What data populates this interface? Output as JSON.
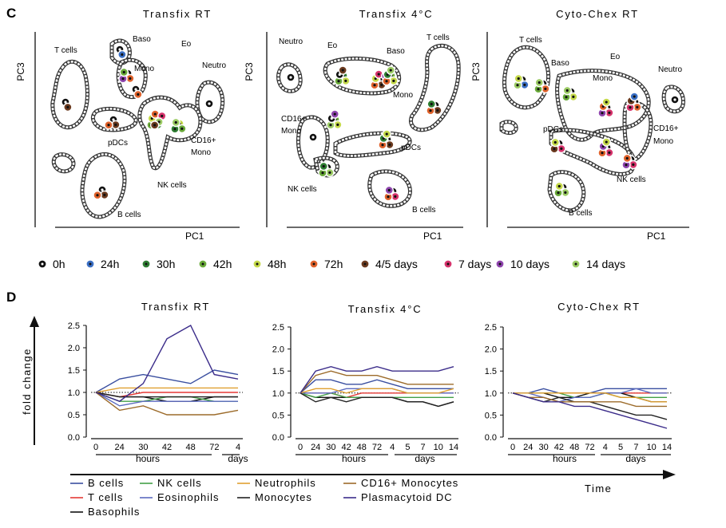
{
  "panels": {
    "C": {
      "label": "C",
      "plots": [
        {
          "title": "Transfix RT",
          "xlabel": "PC1",
          "ylabel": "PC3",
          "populations": [
            "T cells",
            "Baso",
            "Eo",
            "Mono",
            "Neutro",
            "pDCs",
            "CD16+",
            "Mono",
            "NK cells",
            "B cells"
          ]
        },
        {
          "title": "Transfix 4°C",
          "xlabel": "PC1",
          "ylabel": "PC3",
          "populations": [
            "Neutro",
            "Eo",
            "T cells",
            "Baso",
            "Mono",
            "CD16+",
            "Mono",
            "pDCs",
            "NK cells",
            "B cells"
          ]
        },
        {
          "title": "Cyto-Chex RT",
          "xlabel": "PC1",
          "ylabel": "PC3",
          "populations": [
            "T cells",
            "Baso",
            "Eo",
            "Mono",
            "Neutro",
            "pDCs",
            "CD16+",
            "Mono",
            "NK cells",
            "B cells"
          ]
        }
      ],
      "timepoint_legend": [
        {
          "label": "0h",
          "color": "#111111"
        },
        {
          "label": "24h",
          "color": "#3a6fc4"
        },
        {
          "label": "30h",
          "color": "#2e7d32"
        },
        {
          "label": "42h",
          "color": "#6aaa3a"
        },
        {
          "label": "48h",
          "color": "#c5d94a"
        },
        {
          "label": "72h",
          "color": "#e0622b"
        },
        {
          "label": "4/5 days",
          "color": "#6b3a1f"
        },
        {
          "label": "7 days",
          "color": "#d6336c"
        },
        {
          "label": "10 days",
          "color": "#8e44ad"
        },
        {
          "label": "14 days",
          "color": "#9ccc65"
        }
      ]
    },
    "D": {
      "label": "D",
      "ylabel": "fold change",
      "time_label": "Time",
      "hours_label": "hours",
      "days_label": "days"
    }
  },
  "chart_data": [
    {
      "type": "line",
      "title": "Transfix RT",
      "ylabel": "fold change",
      "ylim": [
        0,
        2.5
      ],
      "yticks": [
        "0.0",
        "0.5",
        "1.0",
        "1.5",
        "2.0",
        "2.5"
      ],
      "categories": [
        "0",
        "24",
        "30",
        "42",
        "48",
        "72",
        "4"
      ],
      "reference_line": 1.0,
      "series": [
        {
          "name": "B cells",
          "color": "#3a4fa0",
          "values": [
            1.0,
            1.3,
            1.4,
            1.3,
            1.2,
            1.5,
            1.4
          ]
        },
        {
          "name": "T cells",
          "color": "#e53935",
          "values": [
            1.0,
            0.9,
            1.0,
            1.0,
            1.0,
            1.0,
            1.0
          ]
        },
        {
          "name": "Basophils",
          "color": "#111111",
          "values": [
            1.0,
            0.9,
            0.9,
            0.8,
            0.8,
            0.9,
            0.9
          ]
        },
        {
          "name": "NK cells",
          "color": "#43a047",
          "values": [
            1.0,
            0.8,
            0.8,
            0.9,
            0.9,
            0.8,
            0.8
          ]
        },
        {
          "name": "Eosinophils",
          "color": "#5c6bc0",
          "values": [
            1.0,
            0.7,
            0.8,
            0.8,
            0.8,
            0.8,
            0.8
          ]
        },
        {
          "name": "Neutrophils",
          "color": "#e0a030",
          "values": [
            1.0,
            1.1,
            1.1,
            1.1,
            1.1,
            1.1,
            1.1
          ]
        },
        {
          "name": "Monocytes",
          "color": "#222222",
          "values": [
            1.0,
            0.9,
            0.9,
            0.9,
            0.9,
            0.9,
            0.9
          ]
        },
        {
          "name": "CD16+ Monocytes",
          "color": "#9c6b2a",
          "values": [
            1.0,
            0.6,
            0.7,
            0.5,
            0.5,
            0.5,
            0.6
          ]
        },
        {
          "name": "Plasmacytoid DC",
          "color": "#3b2c8a",
          "values": [
            1.0,
            0.8,
            1.2,
            2.2,
            2.5,
            1.4,
            1.3
          ]
        }
      ]
    },
    {
      "type": "line",
      "title": "Transfix 4°C",
      "ylabel": "fold change",
      "ylim": [
        0,
        2.5
      ],
      "yticks": [
        "0.0",
        "0.5",
        "1.0",
        "1.5",
        "2.0",
        "2.5"
      ],
      "categories": [
        "0",
        "24",
        "30",
        "42",
        "48",
        "72",
        "4",
        "5",
        "7",
        "10",
        "14"
      ],
      "reference_line": 1.0,
      "series": [
        {
          "name": "B cells",
          "color": "#3a4fa0",
          "values": [
            1.0,
            1.3,
            1.3,
            1.2,
            1.2,
            1.3,
            1.2,
            1.1,
            1.1,
            1.1,
            1.1
          ]
        },
        {
          "name": "T cells",
          "color": "#e53935",
          "values": [
            1.0,
            1.0,
            1.0,
            0.9,
            1.0,
            1.0,
            1.0,
            1.0,
            1.0,
            1.0,
            1.0
          ]
        },
        {
          "name": "Basophils",
          "color": "#111111",
          "values": [
            1.0,
            0.9,
            0.9,
            0.9,
            0.9,
            0.9,
            0.9,
            0.8,
            0.8,
            0.7,
            0.8
          ]
        },
        {
          "name": "NK cells",
          "color": "#43a047",
          "values": [
            1.0,
            0.9,
            1.0,
            0.9,
            0.9,
            0.9,
            0.9,
            0.9,
            0.9,
            0.9,
            0.9
          ]
        },
        {
          "name": "Eosinophils",
          "color": "#5c6bc0",
          "values": [
            1.0,
            1.0,
            1.0,
            1.1,
            1.1,
            1.1,
            1.1,
            1.0,
            1.0,
            1.0,
            1.0
          ]
        },
        {
          "name": "Neutrophils",
          "color": "#e0a030",
          "values": [
            1.0,
            1.1,
            1.1,
            1.0,
            1.1,
            1.1,
            1.1,
            1.0,
            1.0,
            1.0,
            1.1
          ]
        },
        {
          "name": "Monocytes",
          "color": "#222222",
          "values": [
            1.0,
            0.8,
            0.9,
            0.8,
            0.9,
            0.9,
            0.9,
            0.8,
            0.8,
            0.7,
            0.8
          ]
        },
        {
          "name": "CD16+ Monocytes",
          "color": "#9c6b2a",
          "values": [
            1.0,
            1.4,
            1.5,
            1.4,
            1.4,
            1.4,
            1.3,
            1.2,
            1.2,
            1.2,
            1.2
          ]
        },
        {
          "name": "Plasmacytoid DC",
          "color": "#3b2c8a",
          "values": [
            1.0,
            1.5,
            1.6,
            1.5,
            1.5,
            1.6,
            1.5,
            1.5,
            1.5,
            1.5,
            1.6
          ]
        }
      ]
    },
    {
      "type": "line",
      "title": "Cyto-Chex RT",
      "ylabel": "fold change",
      "ylim": [
        0,
        2.5
      ],
      "yticks": [
        "0.0",
        "0.5",
        "1.0",
        "1.5",
        "2.0",
        "2.5"
      ],
      "categories": [
        "0",
        "24",
        "30",
        "42",
        "48",
        "72",
        "4",
        "5",
        "7",
        "10",
        "14"
      ],
      "reference_line": 1.0,
      "series": [
        {
          "name": "B cells",
          "color": "#3a4fa0",
          "values": [
            1.0,
            1.0,
            1.1,
            1.0,
            1.0,
            1.0,
            1.1,
            1.1,
            1.1,
            1.1,
            1.1
          ]
        },
        {
          "name": "T cells",
          "color": "#e53935",
          "values": [
            1.0,
            1.0,
            1.0,
            1.0,
            1.0,
            1.0,
            1.0,
            1.0,
            1.0,
            1.0,
            1.0
          ]
        },
        {
          "name": "Basophils",
          "color": "#111111",
          "values": [
            1.0,
            1.0,
            1.0,
            0.9,
            0.9,
            1.0,
            1.0,
            1.0,
            0.9,
            0.8,
            0.8
          ]
        },
        {
          "name": "NK cells",
          "color": "#43a047",
          "values": [
            1.0,
            1.0,
            1.0,
            1.0,
            0.9,
            0.9,
            1.0,
            0.9,
            0.9,
            0.9,
            0.9
          ]
        },
        {
          "name": "Eosinophils",
          "color": "#5c6bc0",
          "values": [
            1.0,
            1.0,
            0.9,
            0.8,
            0.9,
            0.9,
            1.0,
            1.0,
            1.1,
            1.0,
            1.0
          ]
        },
        {
          "name": "Neutrophils",
          "color": "#e0a030",
          "values": [
            1.0,
            1.0,
            1.0,
            1.0,
            1.0,
            1.0,
            1.0,
            0.9,
            0.9,
            0.8,
            0.8
          ]
        },
        {
          "name": "Monocytes",
          "color": "#222222",
          "values": [
            1.0,
            0.9,
            0.8,
            0.9,
            0.8,
            0.8,
            0.7,
            0.6,
            0.5,
            0.5,
            0.4
          ]
        },
        {
          "name": "CD16+ Monocytes",
          "color": "#9c6b2a",
          "values": [
            1.0,
            0.9,
            0.9,
            0.8,
            0.8,
            0.8,
            0.8,
            0.8,
            0.7,
            0.7,
            0.7
          ]
        },
        {
          "name": "Plasmacytoid DC",
          "color": "#3b2c8a",
          "values": [
            1.0,
            0.9,
            0.8,
            0.8,
            0.7,
            0.7,
            0.6,
            0.5,
            0.4,
            0.3,
            0.2
          ]
        }
      ]
    }
  ]
}
